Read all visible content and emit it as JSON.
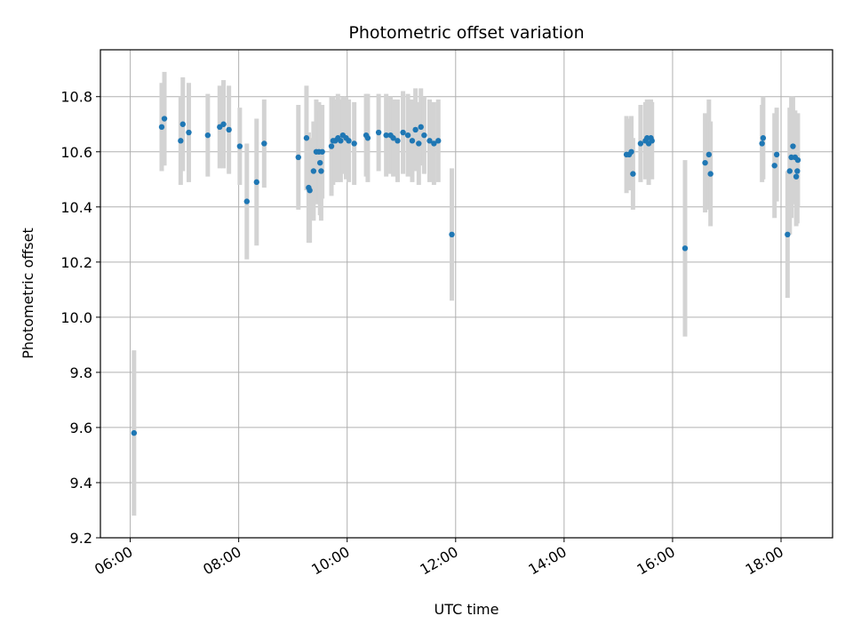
{
  "chart_data": {
    "type": "scatter",
    "title": "Photometric offset variation",
    "xlabel": "UTC time",
    "ylabel": "Photometric offset",
    "x_unit": "UTC hours",
    "xlim": [
      5.45,
      18.95
    ],
    "ylim": [
      9.2,
      10.97
    ],
    "x_ticks": [
      6,
      8,
      10,
      12,
      14,
      16,
      18
    ],
    "x_tick_labels": [
      "06:00",
      "08:00",
      "10:00",
      "12:00",
      "14:00",
      "16:00",
      "18:00"
    ],
    "y_ticks": [
      9.2,
      9.4,
      9.6,
      9.8,
      10.0,
      10.2,
      10.4,
      10.6,
      10.8
    ],
    "y_tick_labels": [
      "9.2",
      "9.4",
      "9.6",
      "9.8",
      "10.0",
      "10.2",
      "10.4",
      "10.6",
      "10.8"
    ],
    "grid": true,
    "colors": {
      "point": "#1f77b4",
      "errorbar": "#d3d3d3",
      "grid": "#b0b0b0"
    },
    "series": [
      {
        "x": [
          6.07,
          6.58,
          6.63,
          6.93,
          6.97,
          7.08,
          7.43,
          7.65,
          7.72,
          7.82,
          8.02,
          8.15,
          8.33,
          8.47,
          9.1,
          9.25,
          9.29,
          9.31,
          9.38,
          9.43,
          9.48,
          9.5,
          9.52,
          9.54,
          9.71,
          9.74,
          9.78,
          9.83,
          9.88,
          9.92,
          9.98,
          10.03,
          10.13,
          10.35,
          10.38,
          10.58,
          10.72,
          10.8,
          10.85,
          10.93,
          11.03,
          11.12,
          11.2,
          11.26,
          11.32,
          11.36,
          11.42,
          11.52,
          11.6,
          11.68,
          11.93,
          15.15,
          15.2,
          15.24,
          15.27,
          15.41,
          15.5,
          15.53,
          15.56,
          15.6,
          15.62,
          16.23,
          16.6,
          16.67,
          16.7,
          17.65,
          17.67,
          17.88,
          17.92,
          18.12,
          18.16,
          18.19,
          18.22,
          18.26,
          18.28,
          18.3,
          18.31
        ],
        "y": [
          9.58,
          10.69,
          10.72,
          10.64,
          10.7,
          10.67,
          10.66,
          10.69,
          10.7,
          10.68,
          10.62,
          10.42,
          10.49,
          10.63,
          10.58,
          10.65,
          10.47,
          10.46,
          10.53,
          10.6,
          10.6,
          10.56,
          10.53,
          10.6,
          10.62,
          10.64,
          10.64,
          10.65,
          10.64,
          10.66,
          10.65,
          10.64,
          10.63,
          10.66,
          10.65,
          10.67,
          10.66,
          10.66,
          10.65,
          10.64,
          10.67,
          10.66,
          10.64,
          10.68,
          10.63,
          10.69,
          10.66,
          10.64,
          10.63,
          10.64,
          10.3,
          10.59,
          10.59,
          10.6,
          10.52,
          10.63,
          10.64,
          10.65,
          10.63,
          10.65,
          10.64,
          10.25,
          10.56,
          10.59,
          10.52,
          10.63,
          10.65,
          10.55,
          10.59,
          10.3,
          10.53,
          10.58,
          10.62,
          10.58,
          10.51,
          10.53,
          10.57
        ],
        "yerr": [
          0.3,
          0.16,
          0.17,
          0.16,
          0.17,
          0.18,
          0.15,
          0.15,
          0.16,
          0.16,
          0.14,
          0.21,
          0.23,
          0.16,
          0.19,
          0.19,
          0.2,
          0.19,
          0.18,
          0.19,
          0.18,
          0.19,
          0.18,
          0.17,
          0.18,
          0.16,
          0.15,
          0.16,
          0.15,
          0.14,
          0.15,
          0.15,
          0.15,
          0.15,
          0.16,
          0.14,
          0.15,
          0.14,
          0.14,
          0.15,
          0.15,
          0.15,
          0.15,
          0.15,
          0.15,
          0.14,
          0.14,
          0.15,
          0.15,
          0.15,
          0.24,
          0.14,
          0.13,
          0.13,
          0.13,
          0.14,
          0.14,
          0.14,
          0.15,
          0.14,
          0.14,
          0.32,
          0.18,
          0.2,
          0.19,
          0.14,
          0.15,
          0.19,
          0.17,
          0.23,
          0.23,
          0.22,
          0.18,
          0.17,
          0.18,
          0.19,
          0.17
        ]
      }
    ]
  }
}
